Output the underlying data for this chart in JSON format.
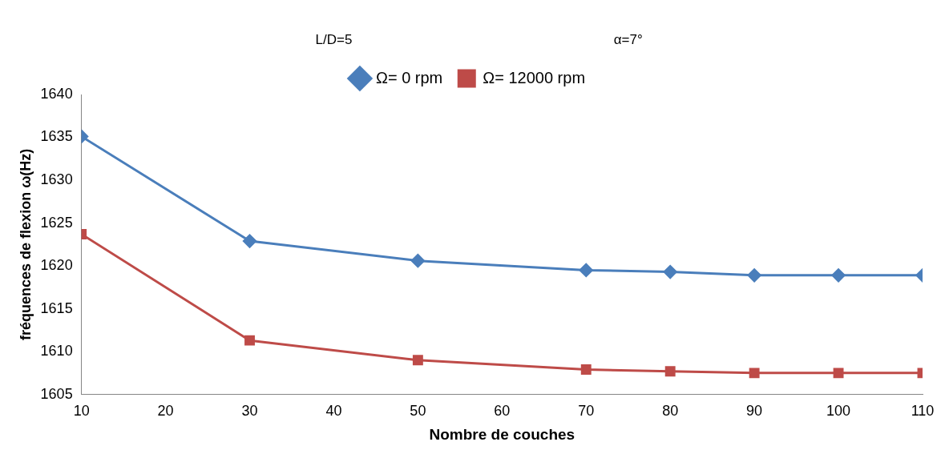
{
  "chart_data": {
    "type": "line",
    "xlabel": "Nombre de couches",
    "ylabel": "fréquences de flexion ω(Hz)",
    "annotations": [
      "L/D=5",
      "α=7°"
    ],
    "x": [
      10,
      30,
      50,
      70,
      80,
      90,
      100,
      110
    ],
    "series": [
      {
        "name": "Ω= 0 rpm",
        "color": "#4a7ebb",
        "marker": "diamond",
        "values": [
          1635.1,
          1622.9,
          1620.6,
          1619.5,
          1619.3,
          1618.9,
          1618.9,
          1618.9
        ]
      },
      {
        "name": "Ω= 12000 rpm",
        "color": "#be4b48",
        "marker": "square",
        "values": [
          1623.7,
          1611.3,
          1609.0,
          1607.9,
          1607.7,
          1607.5,
          1607.5,
          1607.5
        ]
      }
    ],
    "xlim": [
      10,
      110
    ],
    "xticks": [
      10,
      20,
      30,
      40,
      50,
      60,
      70,
      80,
      90,
      100,
      110
    ],
    "ylim": [
      1605,
      1640
    ],
    "yticks": [
      1605,
      1610,
      1615,
      1620,
      1625,
      1630,
      1635,
      1640
    ],
    "grid": false,
    "legend": "top",
    "line_style": "solid"
  }
}
